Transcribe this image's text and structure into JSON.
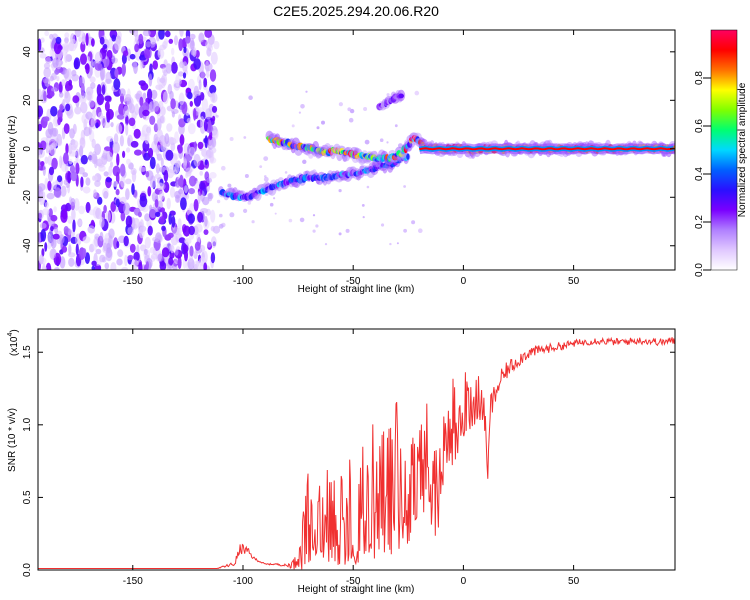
{
  "chart_data": [
    {
      "type": "heatmap",
      "title": "C2E5.2025.294.20.06.R20",
      "xlabel": "Height of straight line (km)",
      "ylabel": "Frequency (Hz)",
      "xlim": [
        -193,
        96
      ],
      "ylim": [
        -50,
        49
      ],
      "xticks": [
        -150,
        -100,
        -50,
        0,
        50
      ],
      "yticks": [
        -40,
        -20,
        0,
        20,
        40
      ],
      "colorbar": {
        "label": "Normalized spectral amplitude",
        "range": [
          0,
          1
        ],
        "ticks": [
          "0.0",
          "0.2",
          "0.4",
          "0.6",
          "0.8"
        ],
        "colors": [
          "#ffffff",
          "#e0c8ff",
          "#b080ff",
          "#7a00ff",
          "#2a10ff",
          "#0060ff",
          "#00d8ff",
          "#00ff70",
          "#80ff00",
          "#ffff00",
          "#ff7000",
          "#ff0000",
          "#ff0060"
        ]
      },
      "features": [
        {
          "name": "noise-region",
          "x_range": [
            -193,
            -112
          ],
          "freq_range": [
            -50,
            49
          ],
          "amplitude": [
            0.05,
            0.35
          ]
        },
        {
          "name": "lower-branch",
          "points": [
            [
              -110,
              -18
            ],
            [
              -105,
              -19
            ],
            [
              -100,
              -20
            ],
            [
              -95,
              -19
            ],
            [
              -90,
              -17
            ],
            [
              -85,
              -15
            ],
            [
              -80,
              -14
            ],
            [
              -72,
              -12
            ],
            [
              -64,
              -12
            ],
            [
              -55,
              -11
            ],
            [
              -47,
              -10
            ],
            [
              -40,
              -8
            ],
            [
              -32,
              -6
            ],
            [
              -25,
              -3
            ]
          ],
          "amplitude": [
            0.2,
            0.5
          ]
        },
        {
          "name": "upper-branch",
          "points": [
            [
              -88,
              4
            ],
            [
              -82,
              3
            ],
            [
              -76,
              1
            ],
            [
              -70,
              0
            ],
            [
              -64,
              -1
            ],
            [
              -58,
              -1
            ],
            [
              -52,
              -2
            ],
            [
              -46,
              -3
            ],
            [
              -40,
              -4
            ],
            [
              -34,
              -4
            ],
            [
              -28,
              -2
            ],
            [
              -22,
              5
            ],
            [
              -18,
              1
            ],
            [
              -12,
              0
            ],
            [
              -5,
              0
            ],
            [
              0,
              0
            ],
            [
              5,
              -1
            ],
            [
              10,
              0
            ],
            [
              20,
              0
            ],
            [
              40,
              0
            ],
            [
              60,
              0
            ],
            [
              80,
              0
            ],
            [
              96,
              0
            ]
          ],
          "amplitude": [
            0.3,
            1.0
          ]
        },
        {
          "name": "harmonic",
          "points": [
            [
              -38,
              17
            ],
            [
              -35,
              19
            ],
            [
              -31,
              21
            ],
            [
              -28,
              22
            ]
          ],
          "amplitude": [
            0.15,
            0.3
          ]
        }
      ]
    },
    {
      "type": "line",
      "xlabel": "Height of straight line (km)",
      "ylabel": "SNR (10 * v/v)",
      "yscale_label": "(x10",
      "yscale_exponent": "4",
      "xlim": [
        -193,
        96
      ],
      "ylim": [
        0,
        1.66
      ],
      "xticks": [
        -150,
        -100,
        -50,
        0,
        50
      ],
      "yticks": [
        "0.0",
        "0.5",
        "1.0",
        "1.5"
      ],
      "series": [
        {
          "name": "SNR",
          "color": "#f03030",
          "envelope_x": [
            -193,
            -112,
            -104,
            -101,
            -98,
            -95,
            -90,
            -85,
            -80,
            -76,
            -74,
            -70,
            -65,
            -60,
            -55,
            -50,
            -45,
            -40,
            -35,
            -30,
            -25,
            -20,
            -16,
            -12,
            -8,
            -4,
            0,
            4,
            8,
            10,
            11,
            12,
            16,
            20,
            25,
            30,
            40,
            50,
            60,
            70,
            80,
            90,
            96
          ],
          "envelope_y": [
            0.01,
            0.01,
            0.04,
            0.15,
            0.13,
            0.08,
            0.04,
            0.04,
            0.03,
            0.05,
            0.28,
            0.3,
            0.33,
            0.35,
            0.38,
            0.35,
            0.4,
            0.5,
            0.55,
            0.55,
            0.62,
            0.6,
            0.75,
            0.5,
            0.95,
            1.0,
            1.08,
            1.15,
            1.2,
            1.0,
            0.6,
            1.1,
            1.28,
            1.38,
            1.45,
            1.5,
            1.53,
            1.56,
            1.58,
            1.57,
            1.58,
            1.57,
            1.58
          ],
          "noise_amplitude": [
            0.0,
            0.0,
            0.02,
            0.04,
            0.03,
            0.01,
            0.005,
            0.005,
            0.01,
            0.05,
            0.25,
            0.28,
            0.3,
            0.3,
            0.32,
            0.32,
            0.35,
            0.4,
            0.45,
            0.45,
            0.4,
            0.4,
            0.35,
            0.3,
            0.25,
            0.25,
            0.2,
            0.18,
            0.15,
            0.1,
            0.0,
            0.1,
            0.08,
            0.06,
            0.05,
            0.04,
            0.03,
            0.025,
            0.025,
            0.025,
            0.025,
            0.025,
            0.03
          ]
        }
      ]
    }
  ]
}
